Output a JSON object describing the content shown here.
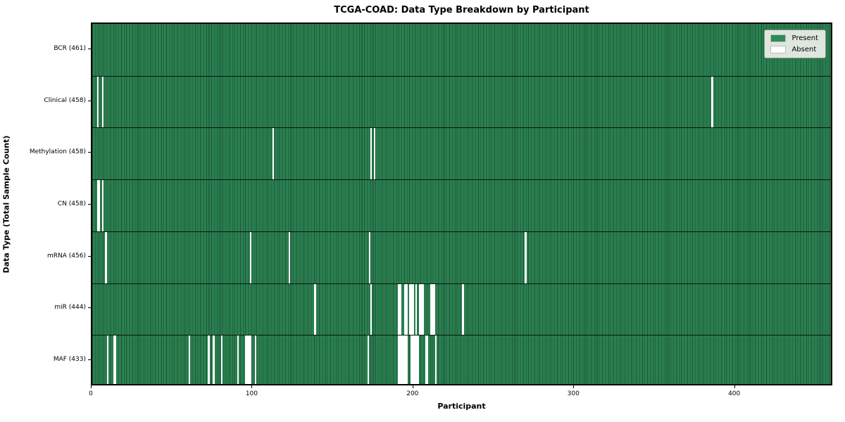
{
  "title": "TCGA-COAD: Data Type Breakdown by Participant",
  "colors": {
    "present": "#2e8b57",
    "absent": "#ffffff",
    "legend_background": "#dee6de",
    "spine": "#000000"
  },
  "legend": {
    "entries": [
      {
        "label": "Present",
        "color": "#2e8b57"
      },
      {
        "label": "Absent",
        "color": "#ffffff"
      }
    ]
  },
  "chart_data": {
    "type": "heatmap",
    "title": "TCGA-COAD: Data Type Breakdown by Participant",
    "xlabel": "Participant",
    "ylabel": "Data Type (Total Sample Count)",
    "x_ticks": [
      0,
      100,
      200,
      300,
      400
    ],
    "x_range": [
      0,
      461
    ],
    "n_participants": 461,
    "grid": false,
    "legend_position": "upper right",
    "cell_values": "1 = present (green), 0 = absent (white)",
    "rows": [
      {
        "label": "BCR (461)",
        "data_type": "BCR",
        "present_count": 461,
        "absent_participants": []
      },
      {
        "label": "Clinical (458)",
        "data_type": "Clinical",
        "present_count": 458,
        "absent_participants": [
          3,
          6,
          385
        ]
      },
      {
        "label": "Methylation (458)",
        "data_type": "Methylation",
        "present_count": 458,
        "absent_participants": [
          112,
          173,
          175
        ]
      },
      {
        "label": "CN (458)",
        "data_type": "CN",
        "present_count": 458,
        "absent_participants": [
          3,
          4,
          6
        ]
      },
      {
        "label": "mRNA (456)",
        "data_type": "mRNA",
        "present_count": 456,
        "absent_participants": [
          8,
          98,
          122,
          172,
          269
        ]
      },
      {
        "label": "miR (444)",
        "data_type": "miR",
        "present_count": 444,
        "absent_participants": [
          138,
          173,
          190,
          191,
          194,
          195,
          197,
          198,
          199,
          201,
          203,
          204,
          205,
          210,
          211,
          212,
          230
        ]
      },
      {
        "label": "MAF (433)",
        "data_type": "MAF",
        "present_count": 433,
        "absent_participants": [
          9,
          13,
          14,
          60,
          72,
          75,
          80,
          90,
          95,
          96,
          97,
          98,
          101,
          171,
          190,
          191,
          192,
          193,
          194,
          195,
          198,
          199,
          200,
          201,
          202,
          207,
          208,
          213
        ]
      }
    ]
  }
}
